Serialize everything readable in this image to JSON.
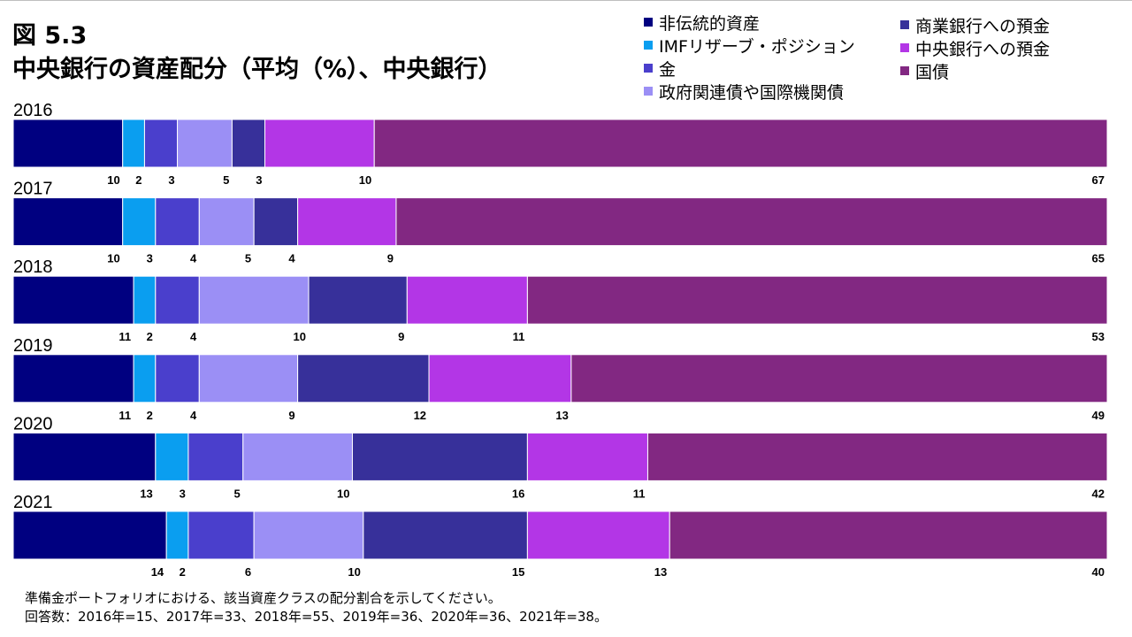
{
  "figure": {
    "number": "図 5.3",
    "title": "中央銀行の資産配分（平均（%）、中央銀行）"
  },
  "legend": [
    {
      "label": "非伝統的資産",
      "color": "#000080"
    },
    {
      "label": "IMFリザーブ・ポジション",
      "color": "#0a9ef0"
    },
    {
      "label": "金",
      "color": "#4a3fcc"
    },
    {
      "label": "政府関連債や国際機関債",
      "color": "#9b8ff5"
    },
    {
      "label": "商業銀行への預金",
      "color": "#37309a"
    },
    {
      "label": "中央銀行への預金",
      "color": "#b336e6"
    },
    {
      "label": "国債",
      "color": "#822882"
    }
  ],
  "chart_data": {
    "type": "bar",
    "orientation": "horizontal",
    "stacked": true,
    "categories": [
      "2016",
      "2017",
      "2018",
      "2019",
      "2020",
      "2021"
    ],
    "series": [
      {
        "name": "非伝統的資産",
        "values": [
          10,
          10,
          11,
          11,
          13,
          14
        ]
      },
      {
        "name": "IMFリザーブ・ポジション",
        "values": [
          2,
          3,
          2,
          2,
          3,
          2
        ]
      },
      {
        "name": "金",
        "values": [
          3,
          4,
          4,
          4,
          5,
          6
        ]
      },
      {
        "name": "政府関連債や国際機関債",
        "values": [
          5,
          5,
          10,
          9,
          10,
          10
        ]
      },
      {
        "name": "商業銀行への預金",
        "values": [
          3,
          4,
          9,
          12,
          16,
          15
        ]
      },
      {
        "name": "中央銀行への預金",
        "values": [
          10,
          9,
          11,
          13,
          11,
          13
        ]
      },
      {
        "name": "国債",
        "values": [
          67,
          65,
          53,
          49,
          42,
          40
        ]
      }
    ],
    "unit": "%",
    "xlim": [
      0,
      100
    ],
    "grid": false,
    "legend_position": "top-right"
  },
  "notes": {
    "line1": "準備金ポートフォリオにおける、該当資産クラスの配分割合を示してください。",
    "line2": "回答数：2016年=15、2017年=33、2018年=55、2019年=36、2020年=36、2021年=38。"
  }
}
